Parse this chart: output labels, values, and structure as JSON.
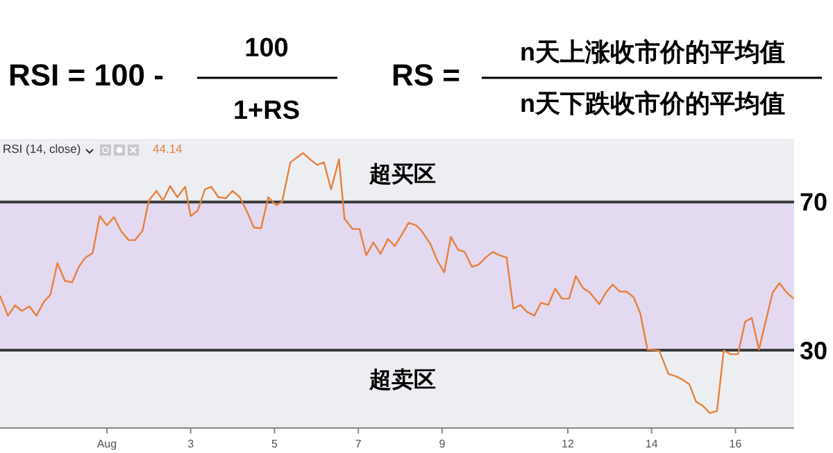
{
  "chart_data": {
    "type": "line",
    "x": [
      -1.55,
      -1.36,
      -1.19,
      -1.03,
      -0.85,
      -0.68,
      -0.5,
      -0.35,
      -0.18,
      0,
      0.17,
      0.33,
      0.49,
      0.66,
      0.83,
      1,
      1.17,
      1.34,
      1.52,
      1.67,
      1.85,
      2,
      2.18,
      2.34,
      2.51,
      2.68,
      2.87,
      3,
      3.17,
      3.34,
      3.49,
      3.66,
      3.84,
      4,
      4.17,
      4.34,
      4.51,
      4.68,
      4.85,
      5.04,
      5.18,
      5.38,
      5.68,
      5.87,
      6.02,
      6.18,
      6.35,
      6.54,
      6.67,
      6.86,
      7.03,
      7.19,
      7.36,
      7.53,
      7.71,
      7.87,
      8.03,
      8.2,
      8.38,
      8.49,
      8.72,
      8.88,
      9.05,
      9.21,
      9.38,
      9.54,
      9.71,
      9.87,
      10.04,
      10.21,
      10.37,
      10.54,
      10.7,
      10.87,
      11.03,
      11.2,
      11.36,
      11.53,
      11.7,
      11.86,
      12.03,
      12.19,
      12.36,
      12.52,
      12.75,
      12.91,
      13.07,
      13.24,
      13.4,
      13.57,
      13.73,
      13.9,
      14.18,
      14.4,
      14.57,
      14.73,
      14.9,
      15.06,
      15.23,
      15.39,
      15.56,
      15.72,
      15.89,
      16.06,
      16.23,
      16.39,
      16.56,
      16.72,
      16.89,
      17.05,
      17.22,
      17.39
    ],
    "series": [
      {
        "color": "#e8803a",
        "values": [
          44.7,
          39.3,
          42.1,
          40.6,
          41.8,
          39.3,
          43.1,
          44.9,
          53.5,
          48.7,
          48.3,
          52.5,
          55,
          56.2,
          66.2,
          63.7,
          65.9,
          62.1,
          59.7,
          59.7,
          62.2,
          70.3,
          73,
          70.4,
          74.3,
          71.3,
          74.1,
          66.2,
          67.7,
          73.4,
          74.1,
          71.3,
          71,
          73,
          71.3,
          67.5,
          63.1,
          62.9,
          71.3,
          69.1,
          70,
          80.7,
          83.2,
          81.3,
          80,
          80.7,
          73.4,
          81.5,
          65.5,
          62.7,
          62.7,
          55.6,
          59.1,
          56,
          60,
          58.1,
          61,
          64.4,
          63.7,
          62.5,
          58.7,
          54.3,
          51,
          60.6,
          57.1,
          56.5,
          52.5,
          53.1,
          55,
          56.5,
          55.6,
          55,
          41.2,
          42.2,
          40.3,
          39.3,
          42.8,
          42.2,
          46.6,
          43.9,
          43.9,
          50,
          46.8,
          45.6,
          42.4,
          45.6,
          47.7,
          45.8,
          45.8,
          44.3,
          39.9,
          30.2,
          29.9,
          23.6,
          23,
          22.1,
          20.8,
          16.1,
          14.9,
          13,
          13.6,
          29.9,
          28.9,
          28.9,
          37.7,
          38.7,
          30.2,
          37.7,
          45.6,
          48.1,
          45.6,
          43.9
        ]
      }
    ],
    "xlim": [
      -1.55,
      17.4
    ],
    "xticks": [
      {
        "value": 1,
        "label": "Aug"
      },
      3,
      5,
      7,
      9,
      12,
      14,
      16
    ],
    "ylim": [
      9,
      87
    ],
    "yticks": [
      30,
      70
    ],
    "ref_lines": [
      {
        "axis": "y",
        "value": 70,
        "color": "#3a3a3a"
      },
      {
        "axis": "y",
        "value": 30,
        "color": "#3a3a3a"
      }
    ],
    "bands": [
      {
        "axis": "y",
        "from": 30,
        "to": 70,
        "color": "#e3d9f0"
      }
    ],
    "annotations": [
      "RSI = 100 -",
      "100",
      "1+RS",
      "RS =",
      "n天上涨收市价的平均值",
      "n天下跌收市价的平均值",
      "RSI (14, close)",
      "44.14",
      "超买区",
      "超卖区"
    ],
    "marker": "none",
    "line_style": "solid"
  }
}
